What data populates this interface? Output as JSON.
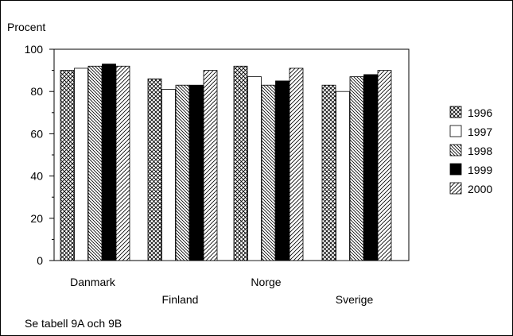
{
  "chart_data": {
    "type": "bar",
    "ylabel": "Procent",
    "ylim": [
      0,
      100
    ],
    "yticks": [
      0,
      20,
      40,
      60,
      80,
      100
    ],
    "categories": [
      "Danmark",
      "Finland",
      "Norge",
      "Sverige"
    ],
    "series": [
      {
        "name": "1996",
        "values": [
          90,
          86,
          92,
          83
        ],
        "pattern": "crosshatch"
      },
      {
        "name": "1997",
        "values": [
          91,
          81,
          87,
          80
        ],
        "pattern": "white"
      },
      {
        "name": "1998",
        "values": [
          92,
          83,
          83,
          87
        ],
        "pattern": "hatch-down"
      },
      {
        "name": "1999",
        "values": [
          93,
          83,
          85,
          88
        ],
        "pattern": "black"
      },
      {
        "name": "2000",
        "values": [
          92,
          90,
          91,
          90
        ],
        "pattern": "hatch-up"
      }
    ],
    "legend_position": "right",
    "grid": false
  },
  "footnote": "Se tabell 9A och 9B"
}
